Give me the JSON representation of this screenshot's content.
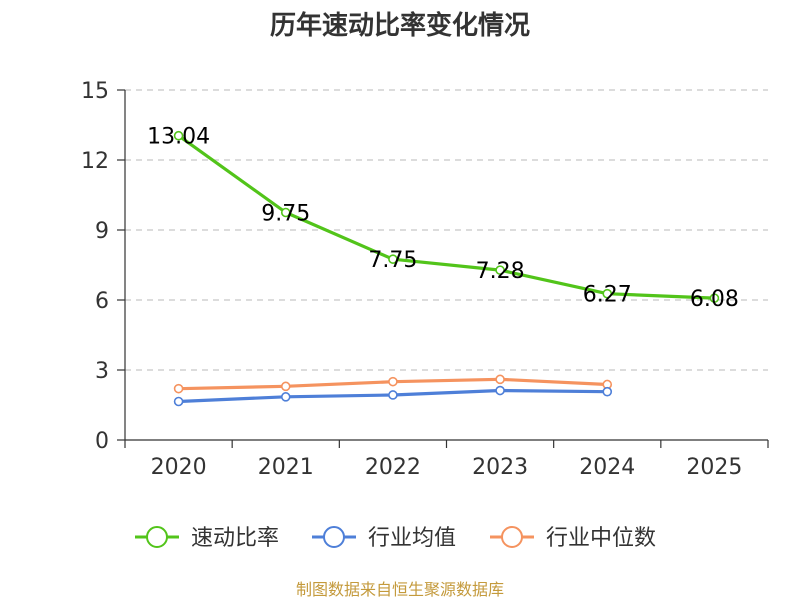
{
  "chart_data": {
    "type": "line",
    "title": "历年速动比率变化情况",
    "categories": [
      "2020",
      "2021",
      "2022",
      "2023",
      "2024",
      "2025"
    ],
    "ylim": [
      0,
      15
    ],
    "yticks": [
      "0",
      "3",
      "6",
      "9",
      "12",
      "15"
    ],
    "grid": true,
    "legend_position": "bottom",
    "series": [
      {
        "name": "速动比率",
        "color": "#52c41a",
        "values": [
          13.04,
          9.75,
          7.75,
          7.28,
          6.27,
          6.08
        ],
        "labels": [
          "13.04",
          "9.75",
          "7.75",
          "7.28",
          "6.27",
          "6.08"
        ]
      },
      {
        "name": "行业均值",
        "color": "#4e7fd8",
        "values": [
          1.65,
          1.85,
          1.93,
          2.12,
          2.07,
          null
        ]
      },
      {
        "name": "行业中位数",
        "color": "#f5935f",
        "values": [
          2.2,
          2.3,
          2.5,
          2.6,
          2.38,
          null
        ]
      }
    ],
    "source": "制图数据来自恒生聚源数据库"
  }
}
